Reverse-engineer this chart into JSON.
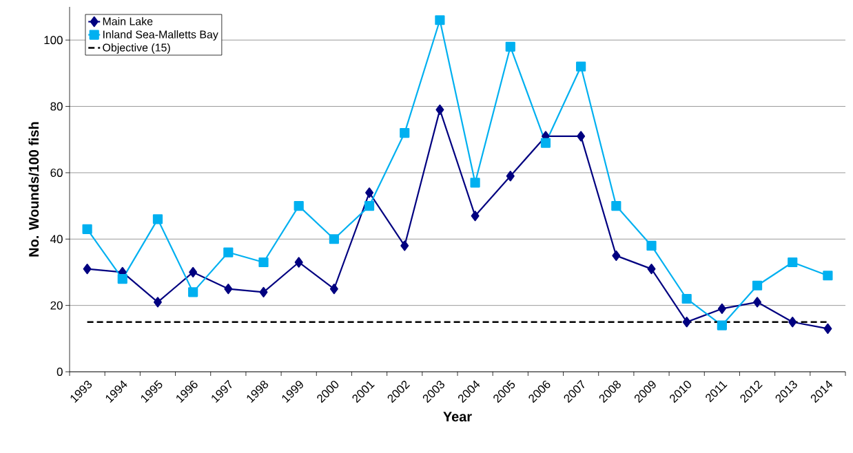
{
  "chart_data": {
    "type": "line",
    "xlabel": "Year",
    "ylabel": "No. Wounds/100 fish",
    "categories": [
      "1993",
      "1994",
      "1995",
      "1996",
      "1997",
      "1998",
      "1999",
      "2000",
      "2001",
      "2002",
      "2003",
      "2004",
      "2005",
      "2006",
      "2007",
      "2008",
      "2009",
      "2010",
      "2011",
      "2012",
      "2013",
      "2014"
    ],
    "series": [
      {
        "name": "Main Lake",
        "color": "#000080",
        "marker": "diamond",
        "line_style": "solid",
        "values": [
          31,
          30,
          21,
          30,
          25,
          24,
          33,
          25,
          54,
          38,
          79,
          47,
          59,
          71,
          71,
          35,
          31,
          15,
          19,
          21,
          15,
          13
        ]
      },
      {
        "name": "Inland Sea-Malletts Bay",
        "color": "#00b0f0",
        "marker": "square",
        "line_style": "solid",
        "values": [
          43,
          28,
          46,
          24,
          36,
          33,
          50,
          40,
          50,
          72,
          106,
          57,
          98,
          69,
          92,
          50,
          38,
          22,
          14,
          26,
          33,
          29
        ]
      },
      {
        "name": "Objective (15)",
        "color": "#000000",
        "marker": "none",
        "line_style": "dashed",
        "values": [
          15,
          15,
          15,
          15,
          15,
          15,
          15,
          15,
          15,
          15,
          15,
          15,
          15,
          15,
          15,
          15,
          15,
          15,
          15,
          15,
          15,
          15
        ]
      }
    ],
    "ylim": [
      0,
      110
    ],
    "yticks": [
      0,
      20,
      40,
      60,
      80,
      100
    ],
    "grid": "y",
    "legend": "top left"
  }
}
